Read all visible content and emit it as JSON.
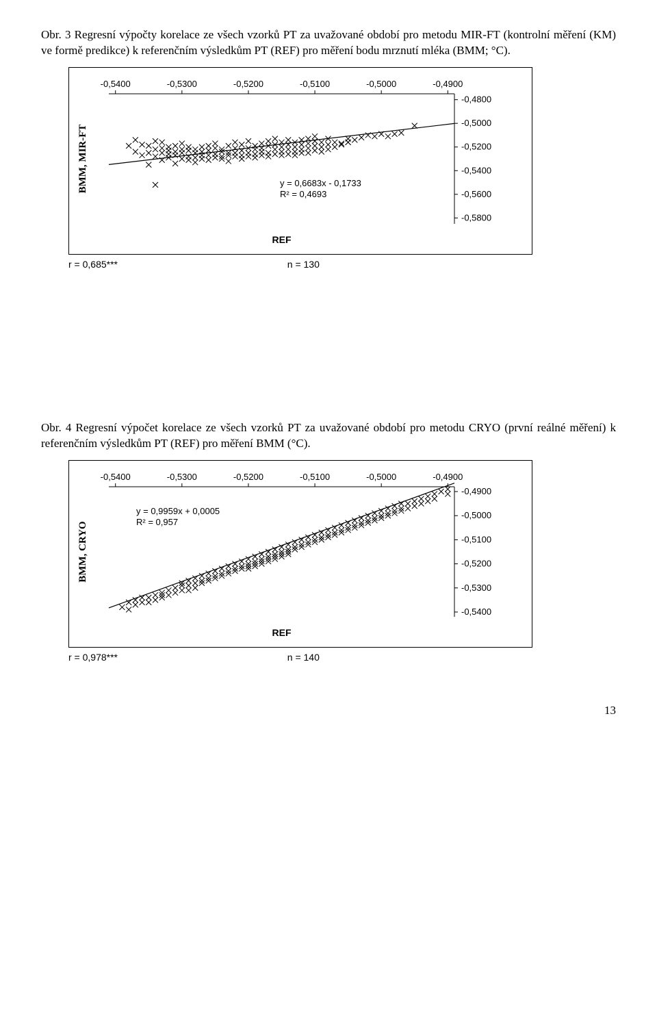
{
  "fig3": {
    "caption": "Obr. 3 Regresní výpočty korelace ze všech vzorků PT za uvažované období pro metodu MIR-FT (kontrolní měření (KM) ve formě predikce) k referenčním výsledkům PT (REF) pro měření bodu mrznutí mléka (BMM; °C).",
    "type": "scatter",
    "ylabel": "BMM, MIR-FT",
    "xlabel": "REF",
    "x_ticks": [
      -0.54,
      -0.53,
      -0.52,
      -0.51,
      -0.5,
      -0.49
    ],
    "x_tick_labels": [
      "-0,5400",
      "-0,5300",
      "-0,5200",
      "-0,5100",
      "-0,5000",
      "-0,4900"
    ],
    "y_ticks": [
      -0.48,
      -0.5,
      -0.52,
      -0.54,
      -0.56,
      -0.58
    ],
    "y_tick_labels": [
      "-0,4800",
      "-0,5000",
      "-0,5200",
      "-0,5400",
      "-0,5600",
      "-0,5800"
    ],
    "xlim": [
      -0.541,
      -0.489
    ],
    "ylim": [
      -0.585,
      -0.475
    ],
    "equation": "y = 0,6683x - 0,1733",
    "r2_text": "R² = 0,4693",
    "r_text": "r = 0,685***",
    "n_text": "n = 130",
    "marker": "x",
    "marker_color": "#000000",
    "line_color": "#000000",
    "trend": {
      "slope": 0.6683,
      "intercept": -0.1733
    },
    "background_color": "#ffffff",
    "points": [
      [
        -0.538,
        -0.519
      ],
      [
        -0.537,
        -0.524
      ],
      [
        -0.537,
        -0.514
      ],
      [
        -0.536,
        -0.527
      ],
      [
        -0.536,
        -0.518
      ],
      [
        -0.535,
        -0.535
      ],
      [
        -0.535,
        -0.525
      ],
      [
        -0.535,
        -0.519
      ],
      [
        -0.534,
        -0.515
      ],
      [
        -0.534,
        -0.528
      ],
      [
        -0.534,
        -0.522
      ],
      [
        -0.534,
        -0.552
      ],
      [
        -0.533,
        -0.531
      ],
      [
        -0.533,
        -0.521
      ],
      [
        -0.533,
        -0.525
      ],
      [
        -0.533,
        -0.516
      ],
      [
        -0.532,
        -0.529
      ],
      [
        -0.532,
        -0.523
      ],
      [
        -0.532,
        -0.526
      ],
      [
        -0.532,
        -0.52
      ],
      [
        -0.531,
        -0.534
      ],
      [
        -0.531,
        -0.524
      ],
      [
        -0.531,
        -0.519
      ],
      [
        -0.531,
        -0.527
      ],
      [
        -0.53,
        -0.522
      ],
      [
        -0.53,
        -0.53
      ],
      [
        -0.53,
        -0.525
      ],
      [
        -0.53,
        -0.517
      ],
      [
        -0.529,
        -0.528
      ],
      [
        -0.529,
        -0.523
      ],
      [
        -0.529,
        -0.531
      ],
      [
        -0.529,
        -0.52
      ],
      [
        -0.528,
        -0.525
      ],
      [
        -0.528,
        -0.529
      ],
      [
        -0.528,
        -0.522
      ],
      [
        -0.528,
        -0.533
      ],
      [
        -0.527,
        -0.527
      ],
      [
        -0.527,
        -0.52
      ],
      [
        -0.527,
        -0.524
      ],
      [
        -0.527,
        -0.53
      ],
      [
        -0.526,
        -0.519
      ],
      [
        -0.526,
        -0.527
      ],
      [
        -0.526,
        -0.523
      ],
      [
        -0.526,
        -0.531
      ],
      [
        -0.525,
        -0.526
      ],
      [
        -0.525,
        -0.521
      ],
      [
        -0.525,
        -0.529
      ],
      [
        -0.525,
        -0.517
      ],
      [
        -0.524,
        -0.524
      ],
      [
        -0.524,
        -0.528
      ],
      [
        -0.524,
        -0.522
      ],
      [
        -0.524,
        -0.53
      ],
      [
        -0.523,
        -0.525
      ],
      [
        -0.523,
        -0.519
      ],
      [
        -0.523,
        -0.527
      ],
      [
        -0.523,
        -0.532
      ],
      [
        -0.522,
        -0.521
      ],
      [
        -0.522,
        -0.528
      ],
      [
        -0.522,
        -0.525
      ],
      [
        -0.522,
        -0.516
      ],
      [
        -0.521,
        -0.523
      ],
      [
        -0.521,
        -0.527
      ],
      [
        -0.521,
        -0.53
      ],
      [
        -0.521,
        -0.518
      ],
      [
        -0.52,
        -0.525
      ],
      [
        -0.52,
        -0.521
      ],
      [
        -0.52,
        -0.528
      ],
      [
        -0.52,
        -0.515
      ],
      [
        -0.519,
        -0.522
      ],
      [
        -0.519,
        -0.526
      ],
      [
        -0.519,
        -0.519
      ],
      [
        -0.519,
        -0.529
      ],
      [
        -0.518,
        -0.524
      ],
      [
        -0.518,
        -0.517
      ],
      [
        -0.518,
        -0.527
      ],
      [
        -0.518,
        -0.521
      ],
      [
        -0.517,
        -0.519
      ],
      [
        -0.517,
        -0.525
      ],
      [
        -0.517,
        -0.528
      ],
      [
        -0.517,
        -0.515
      ],
      [
        -0.516,
        -0.522
      ],
      [
        -0.516,
        -0.518
      ],
      [
        -0.516,
        -0.526
      ],
      [
        -0.516,
        -0.513
      ],
      [
        -0.515,
        -0.52
      ],
      [
        -0.515,
        -0.524
      ],
      [
        -0.515,
        -0.516
      ],
      [
        -0.515,
        -0.527
      ],
      [
        -0.514,
        -0.518
      ],
      [
        -0.514,
        -0.522
      ],
      [
        -0.514,
        -0.526
      ],
      [
        -0.514,
        -0.514
      ],
      [
        -0.513,
        -0.52
      ],
      [
        -0.513,
        -0.516
      ],
      [
        -0.513,
        -0.524
      ],
      [
        -0.513,
        -0.527
      ],
      [
        -0.512,
        -0.518
      ],
      [
        -0.512,
        -0.522
      ],
      [
        -0.512,
        -0.514
      ],
      [
        -0.512,
        -0.525
      ],
      [
        -0.511,
        -0.517
      ],
      [
        -0.511,
        -0.521
      ],
      [
        -0.511,
        -0.525
      ],
      [
        -0.511,
        -0.513
      ],
      [
        -0.51,
        -0.519
      ],
      [
        -0.51,
        -0.515
      ],
      [
        -0.51,
        -0.523
      ],
      [
        -0.51,
        -0.511
      ],
      [
        -0.509,
        -0.52
      ],
      [
        -0.509,
        -0.516
      ],
      [
        -0.509,
        -0.524
      ],
      [
        -0.508,
        -0.518
      ],
      [
        -0.508,
        -0.513
      ],
      [
        -0.508,
        -0.522
      ],
      [
        -0.507,
        -0.516
      ],
      [
        -0.507,
        -0.52
      ],
      [
        -0.506,
        -0.518
      ],
      [
        -0.506,
        -0.517
      ],
      [
        -0.505,
        -0.516
      ],
      [
        -0.505,
        -0.516
      ],
      [
        -0.505,
        -0.513
      ],
      [
        -0.504,
        -0.514
      ],
      [
        -0.503,
        -0.512
      ],
      [
        -0.502,
        -0.51
      ],
      [
        -0.501,
        -0.511
      ],
      [
        -0.5,
        -0.509
      ],
      [
        -0.499,
        -0.511
      ],
      [
        -0.498,
        -0.509
      ],
      [
        -0.497,
        -0.508
      ],
      [
        -0.495,
        -0.502
      ]
    ]
  },
  "fig4": {
    "caption": "Obr. 4 Regresní výpočet korelace ze všech vzorků PT za uvažované období pro metodu CRYO (první reálné měření) k referenčním výsledkům PT (REF) pro měření BMM (°C).",
    "type": "scatter",
    "ylabel": "BMM, CRYO",
    "xlabel": "REF",
    "x_ticks": [
      -0.54,
      -0.53,
      -0.52,
      -0.51,
      -0.5,
      -0.49
    ],
    "x_tick_labels": [
      "-0,5400",
      "-0,5300",
      "-0,5200",
      "-0,5100",
      "-0,5000",
      "-0,4900"
    ],
    "y_ticks": [
      -0.49,
      -0.5,
      -0.51,
      -0.52,
      -0.53,
      -0.54
    ],
    "y_tick_labels": [
      "-0,4900",
      "-0,5000",
      "-0,5100",
      "-0,5200",
      "-0,5300",
      "-0,5400"
    ],
    "xlim": [
      -0.541,
      -0.489
    ],
    "ylim": [
      -0.542,
      -0.488
    ],
    "equation": "y = 0,9959x + 0,0005",
    "r2_text": "R² = 0,957",
    "r_text": "r = 0,978***",
    "n_text": "n = 140",
    "marker": "x",
    "marker_color": "#000000",
    "line_color": "#000000",
    "trend": {
      "slope": 0.9959,
      "intercept": 0.0005
    },
    "background_color": "#ffffff",
    "points": [
      [
        -0.539,
        -0.538
      ],
      [
        -0.538,
        -0.539
      ],
      [
        -0.538,
        -0.536
      ],
      [
        -0.537,
        -0.537
      ],
      [
        -0.537,
        -0.535
      ],
      [
        -0.536,
        -0.536
      ],
      [
        -0.536,
        -0.534
      ],
      [
        -0.535,
        -0.534
      ],
      [
        -0.535,
        -0.536
      ],
      [
        -0.534,
        -0.533
      ],
      [
        -0.534,
        -0.535
      ],
      [
        -0.533,
        -0.533
      ],
      [
        -0.533,
        -0.532
      ],
      [
        -0.533,
        -0.534
      ],
      [
        -0.532,
        -0.531
      ],
      [
        -0.532,
        -0.533
      ],
      [
        -0.531,
        -0.53
      ],
      [
        -0.531,
        -0.532
      ],
      [
        -0.53,
        -0.529
      ],
      [
        -0.53,
        -0.531
      ],
      [
        -0.53,
        -0.528
      ],
      [
        -0.529,
        -0.529
      ],
      [
        -0.529,
        -0.527
      ],
      [
        -0.529,
        -0.531
      ],
      [
        -0.528,
        -0.528
      ],
      [
        -0.528,
        -0.526
      ],
      [
        -0.528,
        -0.53
      ],
      [
        -0.527,
        -0.527
      ],
      [
        -0.527,
        -0.525
      ],
      [
        -0.527,
        -0.528
      ],
      [
        -0.526,
        -0.526
      ],
      [
        -0.526,
        -0.524
      ],
      [
        -0.526,
        -0.527
      ],
      [
        -0.525,
        -0.525
      ],
      [
        -0.525,
        -0.523
      ],
      [
        -0.525,
        -0.526
      ],
      [
        -0.524,
        -0.524
      ],
      [
        -0.524,
        -0.522
      ],
      [
        -0.524,
        -0.525
      ],
      [
        -0.523,
        -0.523
      ],
      [
        -0.523,
        -0.521
      ],
      [
        -0.523,
        -0.524
      ],
      [
        -0.522,
        -0.522
      ],
      [
        -0.522,
        -0.52
      ],
      [
        -0.522,
        -0.523
      ],
      [
        -0.521,
        -0.521
      ],
      [
        -0.521,
        -0.519
      ],
      [
        -0.521,
        -0.522
      ],
      [
        -0.52,
        -0.52
      ],
      [
        -0.52,
        -0.518
      ],
      [
        -0.52,
        -0.521
      ],
      [
        -0.52,
        -0.522
      ],
      [
        -0.519,
        -0.519
      ],
      [
        -0.519,
        -0.517
      ],
      [
        -0.519,
        -0.52
      ],
      [
        -0.519,
        -0.521
      ],
      [
        -0.518,
        -0.518
      ],
      [
        -0.518,
        -0.516
      ],
      [
        -0.518,
        -0.519
      ],
      [
        -0.518,
        -0.52
      ],
      [
        -0.517,
        -0.517
      ],
      [
        -0.517,
        -0.515
      ],
      [
        -0.517,
        -0.518
      ],
      [
        -0.517,
        -0.519
      ],
      [
        -0.516,
        -0.516
      ],
      [
        -0.516,
        -0.514
      ],
      [
        -0.516,
        -0.517
      ],
      [
        -0.516,
        -0.518
      ],
      [
        -0.515,
        -0.515
      ],
      [
        -0.515,
        -0.513
      ],
      [
        -0.515,
        -0.516
      ],
      [
        -0.515,
        -0.517
      ],
      [
        -0.514,
        -0.514
      ],
      [
        -0.514,
        -0.512
      ],
      [
        -0.514,
        -0.515
      ],
      [
        -0.514,
        -0.516
      ],
      [
        -0.513,
        -0.513
      ],
      [
        -0.513,
        -0.511
      ],
      [
        -0.513,
        -0.514
      ],
      [
        -0.512,
        -0.512
      ],
      [
        -0.512,
        -0.51
      ],
      [
        -0.512,
        -0.513
      ],
      [
        -0.511,
        -0.511
      ],
      [
        -0.511,
        -0.509
      ],
      [
        -0.511,
        -0.512
      ],
      [
        -0.51,
        -0.51
      ],
      [
        -0.51,
        -0.508
      ],
      [
        -0.51,
        -0.511
      ],
      [
        -0.509,
        -0.509
      ],
      [
        -0.509,
        -0.507
      ],
      [
        -0.509,
        -0.51
      ],
      [
        -0.508,
        -0.508
      ],
      [
        -0.508,
        -0.506
      ],
      [
        -0.508,
        -0.509
      ],
      [
        -0.507,
        -0.507
      ],
      [
        -0.507,
        -0.505
      ],
      [
        -0.507,
        -0.508
      ],
      [
        -0.506,
        -0.506
      ],
      [
        -0.506,
        -0.504
      ],
      [
        -0.506,
        -0.507
      ],
      [
        -0.505,
        -0.505
      ],
      [
        -0.505,
        -0.503
      ],
      [
        -0.505,
        -0.506
      ],
      [
        -0.504,
        -0.504
      ],
      [
        -0.504,
        -0.502
      ],
      [
        -0.504,
        -0.505
      ],
      [
        -0.503,
        -0.503
      ],
      [
        -0.503,
        -0.501
      ],
      [
        -0.503,
        -0.504
      ],
      [
        -0.502,
        -0.502
      ],
      [
        -0.502,
        -0.5
      ],
      [
        -0.502,
        -0.503
      ],
      [
        -0.501,
        -0.501
      ],
      [
        -0.501,
        -0.499
      ],
      [
        -0.501,
        -0.502
      ],
      [
        -0.5,
        -0.5
      ],
      [
        -0.5,
        -0.498
      ],
      [
        -0.5,
        -0.501
      ],
      [
        -0.499,
        -0.499
      ],
      [
        -0.499,
        -0.497
      ],
      [
        -0.499,
        -0.5
      ],
      [
        -0.498,
        -0.498
      ],
      [
        -0.498,
        -0.496
      ],
      [
        -0.498,
        -0.499
      ],
      [
        -0.497,
        -0.497
      ],
      [
        -0.497,
        -0.495
      ],
      [
        -0.497,
        -0.498
      ],
      [
        -0.496,
        -0.495
      ],
      [
        -0.496,
        -0.497
      ],
      [
        -0.495,
        -0.494
      ],
      [
        -0.495,
        -0.496
      ],
      [
        -0.494,
        -0.493
      ],
      [
        -0.494,
        -0.495
      ],
      [
        -0.493,
        -0.492
      ],
      [
        -0.493,
        -0.494
      ],
      [
        -0.492,
        -0.491
      ],
      [
        -0.492,
        -0.493
      ],
      [
        -0.491,
        -0.49
      ],
      [
        -0.49,
        -0.491
      ],
      [
        -0.49,
        -0.489
      ]
    ]
  },
  "page_number": "13"
}
